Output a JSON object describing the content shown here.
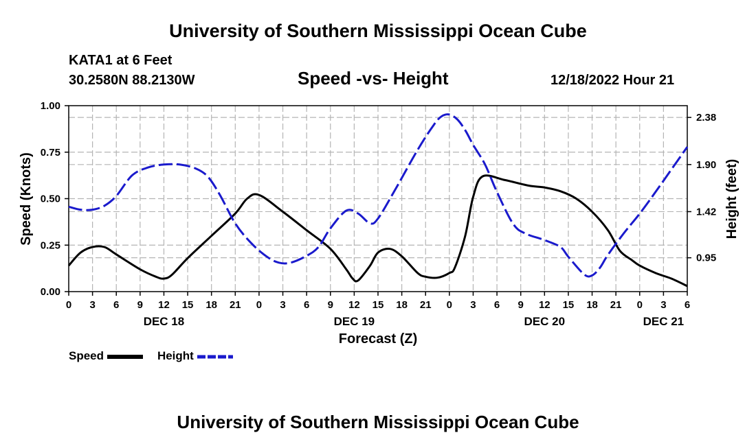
{
  "header": {
    "title": "University of Southern Mississippi Ocean Cube",
    "station": "KATA1 at 6 Feet",
    "coords": "30.2580N  88.2130W",
    "chart_title": "Speed -vs- Height",
    "timestamp": "12/18/2022 Hour 21"
  },
  "footer": {
    "title": "University of Southern Mississippi Ocean Cube"
  },
  "legend": {
    "speed_label": "Speed",
    "height_label": "Height"
  },
  "colors": {
    "speed": "#000000",
    "height": "#1a1acc",
    "grid": "#b4b4b4"
  },
  "chart_data": {
    "type": "line",
    "title": "Speed -vs- Height",
    "xlabel": "Forecast (Z)",
    "ylabel": "Speed (Knots)",
    "y2label": "Height (feet)",
    "x_hours": [
      0,
      78
    ],
    "x_tick_labels": [
      "0",
      "3",
      "6",
      "9",
      "12",
      "15",
      "18",
      "21",
      "0",
      "3",
      "6",
      "9",
      "12",
      "15",
      "18",
      "21",
      "0",
      "3",
      "6",
      "9",
      "12",
      "15",
      "18",
      "21",
      "0",
      "3",
      "6"
    ],
    "day_labels": [
      {
        "label": "DEC 18",
        "hour": 12
      },
      {
        "label": "DEC 19",
        "hour": 36
      },
      {
        "label": "DEC 20",
        "hour": 60
      },
      {
        "label": "DEC 21",
        "hour": 75
      }
    ],
    "ylim": [
      0,
      1
    ],
    "y_ticks": [
      0,
      0.25,
      0.5,
      0.75,
      1
    ],
    "y_tick_labels": [
      "0.00",
      "0.25",
      "0.50",
      "0.75",
      "1.00"
    ],
    "y2_ticks": [
      0.95,
      1.42,
      1.9,
      2.38
    ],
    "y2_tick_labels": [
      "0.95",
      "1.42",
      "1.90",
      "2.38"
    ],
    "y2lim": [
      0.605,
      2.5
    ],
    "series": [
      {
        "name": "Speed",
        "axis": "left",
        "style": "solid",
        "x": [
          0,
          1.5,
          3,
          4.5,
          6,
          9,
          11,
          12,
          13,
          15,
          18,
          21,
          22.5,
          24,
          27,
          30,
          33,
          35,
          35.8,
          36.5,
          38,
          39,
          40.5,
          42,
          44,
          45,
          46.5,
          48,
          48.7,
          50,
          51,
          52.2,
          55,
          58,
          60,
          62,
          64,
          66,
          68,
          69.5,
          71,
          72,
          74,
          76,
          78
        ],
        "values": [
          0.14,
          0.21,
          0.24,
          0.24,
          0.2,
          0.12,
          0.08,
          0.07,
          0.09,
          0.18,
          0.3,
          0.42,
          0.5,
          0.52,
          0.43,
          0.33,
          0.23,
          0.12,
          0.07,
          0.06,
          0.14,
          0.21,
          0.23,
          0.19,
          0.1,
          0.08,
          0.075,
          0.1,
          0.13,
          0.3,
          0.51,
          0.62,
          0.6,
          0.57,
          0.56,
          0.54,
          0.5,
          0.43,
          0.33,
          0.22,
          0.17,
          0.14,
          0.1,
          0.07,
          0.03
        ]
      },
      {
        "name": "Height",
        "axis": "right",
        "style": "dashed",
        "x": [
          0,
          1.5,
          3,
          4.5,
          6,
          8,
          10,
          12,
          14,
          16,
          17.5,
          19,
          21,
          23,
          25,
          26.5,
          28,
          30,
          31.5,
          33,
          35,
          36.5,
          38,
          39,
          41,
          44,
          46,
          47,
          48,
          49,
          50,
          51,
          52.5,
          54,
          56,
          57.5,
          60,
          62,
          63,
          65,
          66,
          67,
          68,
          70,
          72,
          74,
          76,
          78
        ],
        "values": [
          1.47,
          1.44,
          1.44,
          1.48,
          1.58,
          1.79,
          1.87,
          1.9,
          1.9,
          1.86,
          1.78,
          1.6,
          1.3,
          1.1,
          0.96,
          0.9,
          0.9,
          0.97,
          1.06,
          1.25,
          1.43,
          1.4,
          1.3,
          1.35,
          1.62,
          2.05,
          2.3,
          2.39,
          2.41,
          2.36,
          2.25,
          2.1,
          1.9,
          1.62,
          1.3,
          1.2,
          1.13,
          1.06,
          0.96,
          0.78,
          0.77,
          0.85,
          0.98,
          1.2,
          1.4,
          1.62,
          1.85,
          2.08
        ]
      }
    ]
  }
}
